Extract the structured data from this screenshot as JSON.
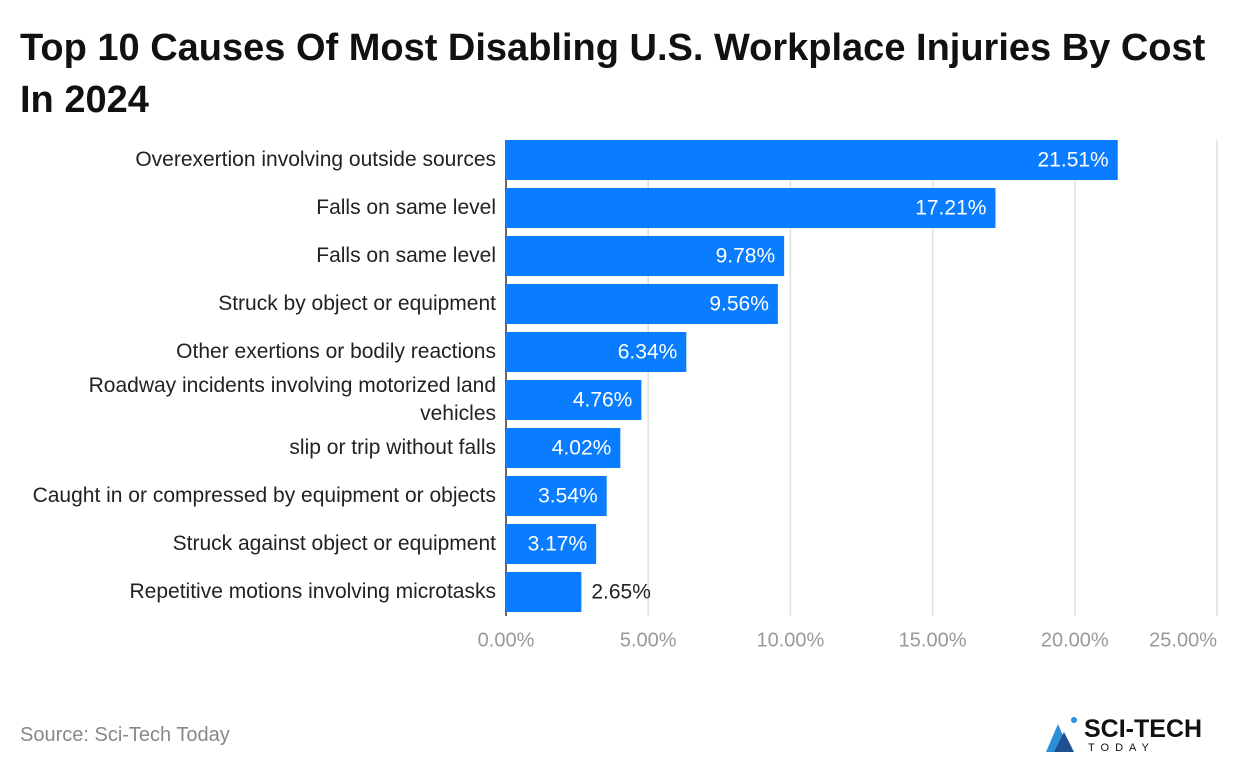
{
  "chart_data": {
    "type": "barh",
    "title": "Top 10 Causes Of Most Disabling U.S. Workplace Injuries By Cost In 2024",
    "categories": [
      "Overexertion involving outside sources",
      "Falls on same level",
      "Falls on same level",
      "Struck by object or equipment",
      "Other exertions or bodily reactions",
      "Roadway incidents involving motorized land vehicles",
      "slip or trip without falls",
      "Caught in or compressed by equipment or objects",
      "Struck against object or equipment",
      "Repetitive motions involving microtasks"
    ],
    "values": [
      21.51,
      17.21,
      9.78,
      9.56,
      6.34,
      4.76,
      4.02,
      3.54,
      3.17,
      2.65
    ],
    "value_labels": [
      "21.51%",
      "17.21%",
      "9.78%",
      "9.56%",
      "6.34%",
      "4.76%",
      "4.02%",
      "3.54%",
      "3.17%",
      "2.65%"
    ],
    "color": "#0a7cff",
    "xlim": [
      0,
      25
    ],
    "xticks": [
      {
        "value": 0,
        "label": "0.00%"
      },
      {
        "value": 5,
        "label": "5.00%"
      },
      {
        "value": 10,
        "label": "10.00%"
      },
      {
        "value": 15,
        "label": "15.00%"
      },
      {
        "value": 20,
        "label": "20.00%"
      },
      {
        "value": 25,
        "label": "25.00%"
      }
    ],
    "grid": true,
    "source": "Source: Sci-Tech Today"
  },
  "logo": {
    "name": "SCI-TECH",
    "tagline": "TODAY"
  }
}
